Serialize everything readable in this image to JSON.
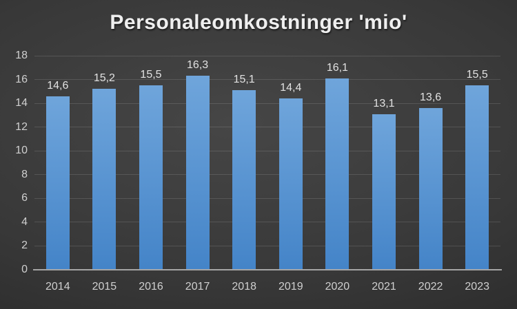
{
  "chart_data": {
    "type": "bar",
    "title": "Personaleomkostninger 'mio'",
    "categories": [
      "2014",
      "2015",
      "2016",
      "2017",
      "2018",
      "2019",
      "2020",
      "2021",
      "2022",
      "2023"
    ],
    "values": [
      14.6,
      15.2,
      15.5,
      16.3,
      15.1,
      14.4,
      16.1,
      13.1,
      13.6,
      15.5
    ],
    "data_labels": [
      "14,6",
      "15,2",
      "15,5",
      "16,3",
      "15,1",
      "14,4",
      "16,1",
      "13,1",
      "13,6",
      "15,5"
    ],
    "xlabel": "",
    "ylabel": "",
    "ylim": [
      0,
      18
    ],
    "ytick_step": 2,
    "ytick_labels": [
      "0",
      "2",
      "4",
      "6",
      "8",
      "10",
      "12",
      "14",
      "16",
      "18"
    ],
    "grid": true,
    "legend_position": "none",
    "decimal_separator": ",",
    "colors": {
      "bar_top": "#6fa5db",
      "bar_bottom": "#4484c8",
      "background_center": "#464646",
      "background_edge": "#242424",
      "gridline": "rgba(255,255,255,0.13)",
      "axis_line": "#a6a6a6",
      "title_text": "#efefef",
      "label_text": "#e2e2e2",
      "tick_text": "#d0d0d0"
    }
  }
}
